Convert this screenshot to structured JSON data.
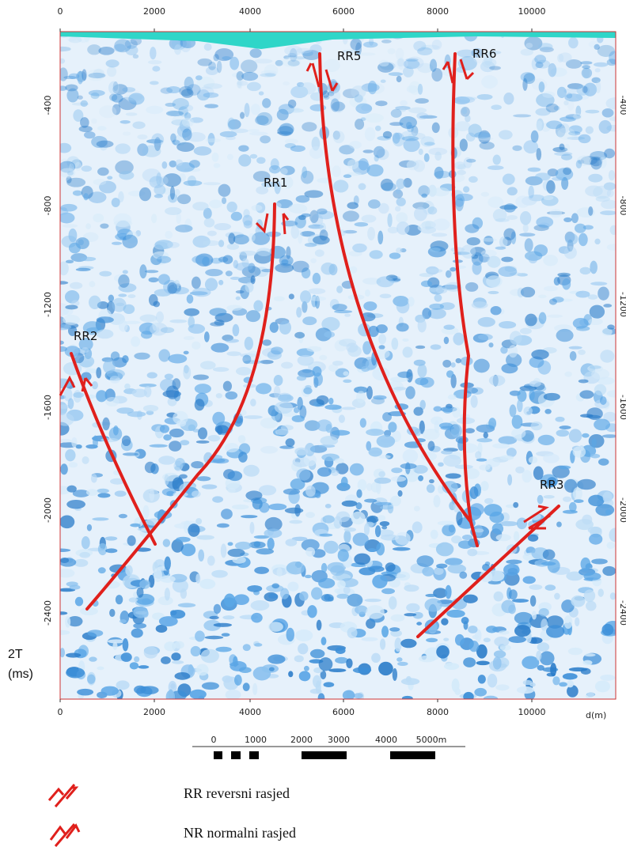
{
  "top_axis": {
    "ticks": [
      "0",
      "2000",
      "4000",
      "6000",
      "8000",
      "10000"
    ]
  },
  "bottom_axis": {
    "ticks": [
      "0",
      "2000",
      "4000",
      "6000",
      "8000",
      "10000"
    ],
    "label": "d(m)"
  },
  "left_axis": {
    "ticks": [
      "-400",
      "-800",
      "-1200",
      "-1600",
      "-2000",
      "-2400"
    ],
    "label_line1": "2T",
    "label_line2": "(ms)"
  },
  "right_axis": {
    "ticks": [
      "-400",
      "-800",
      "-1200",
      "-1600",
      "-2000",
      "-2400"
    ]
  },
  "faults": [
    "RR5",
    "RR6",
    "RR1",
    "RR2",
    "RR3"
  ],
  "scale_bar": {
    "labels": [
      "0",
      "1000",
      "2000",
      "3000",
      "4000",
      "5000m"
    ]
  },
  "legend": [
    {
      "label": "RR reversni rasjed"
    },
    {
      "label": "NR normalni rasjed"
    }
  ]
}
